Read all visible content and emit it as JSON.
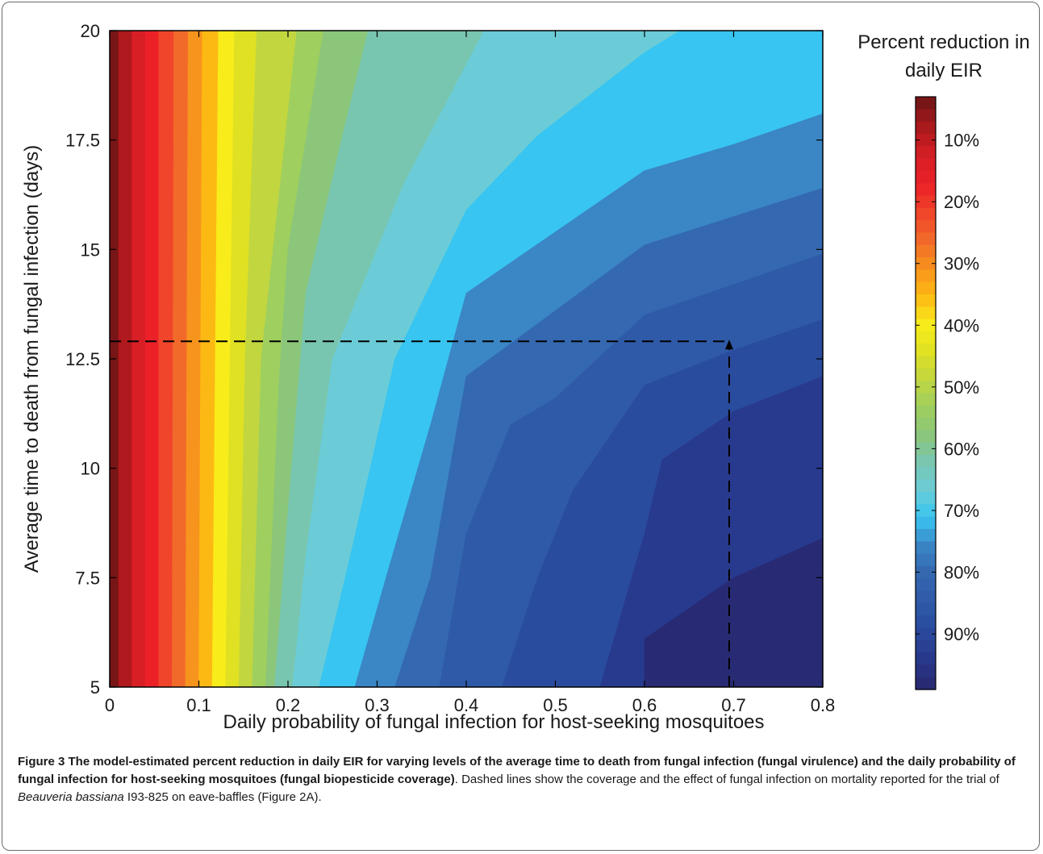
{
  "chart_data": {
    "type": "contour",
    "xlabel": "Daily probability of fungal infection for host-seeking mosquitoes",
    "ylabel": "Average time to death from fungal infection (days)",
    "xlim": [
      0,
      0.8
    ],
    "ylim": [
      5,
      20
    ],
    "x_ticks": [
      "0",
      "0.1",
      "0.2",
      "0.3",
      "0.4",
      "0.5",
      "0.6",
      "0.7",
      "0.8"
    ],
    "y_ticks": [
      "5",
      "7.5",
      "10",
      "12.5",
      "15",
      "17.5",
      "20"
    ],
    "colorbar": {
      "title_line1": "Percent reduction in",
      "title_line2": "daily EIR",
      "range": [
        3,
        99
      ],
      "ticks": [
        "10%",
        "20%",
        "30%",
        "40%",
        "50%",
        "60%",
        "70%",
        "80%",
        "90%"
      ]
    },
    "contour_levels_percent": [
      5,
      10,
      15,
      20,
      25,
      30,
      35,
      40,
      45,
      50,
      55,
      60,
      65,
      70,
      75,
      80,
      85,
      90,
      95
    ],
    "contour_boundaries": [
      {
        "level": 5,
        "points": [
          [
            0.01,
            5
          ],
          [
            0.01,
            20
          ]
        ]
      },
      {
        "level": 10,
        "points": [
          [
            0.025,
            5
          ],
          [
            0.025,
            20
          ]
        ]
      },
      {
        "level": 15,
        "points": [
          [
            0.04,
            5
          ],
          [
            0.04,
            20
          ]
        ]
      },
      {
        "level": 20,
        "points": [
          [
            0.055,
            5
          ],
          [
            0.055,
            20
          ]
        ]
      },
      {
        "level": 25,
        "points": [
          [
            0.07,
            5
          ],
          [
            0.072,
            20
          ]
        ]
      },
      {
        "level": 30,
        "points": [
          [
            0.085,
            5
          ],
          [
            0.088,
            20
          ]
        ]
      },
      {
        "level": 35,
        "points": [
          [
            0.1,
            5
          ],
          [
            0.104,
            20
          ]
        ]
      },
      {
        "level": 40,
        "points": [
          [
            0.115,
            5
          ],
          [
            0.122,
            20
          ]
        ]
      },
      {
        "level": 45,
        "points": [
          [
            0.13,
            5
          ],
          [
            0.14,
            20
          ]
        ]
      },
      {
        "level": 50,
        "points": [
          [
            0.145,
            5
          ],
          [
            0.152,
            12.5
          ],
          [
            0.165,
            20
          ]
        ]
      },
      {
        "level": 55,
        "points": [
          [
            0.16,
            5
          ],
          [
            0.17,
            12.5
          ],
          [
            0.21,
            20
          ]
        ]
      },
      {
        "level": 60,
        "points": [
          [
            0.175,
            5
          ],
          [
            0.19,
            12
          ],
          [
            0.2,
            15
          ],
          [
            0.24,
            20
          ]
        ]
      },
      {
        "level": 65,
        "points": [
          [
            0.185,
            5
          ],
          [
            0.2,
            9
          ],
          [
            0.22,
            14
          ],
          [
            0.26,
            17.5
          ],
          [
            0.29,
            20
          ]
        ]
      },
      {
        "level": 70,
        "points": [
          [
            0.205,
            5
          ],
          [
            0.22,
            8
          ],
          [
            0.25,
            12.5
          ],
          [
            0.33,
            16.5
          ],
          [
            0.42,
            20
          ]
        ]
      },
      {
        "level": 75,
        "points": [
          [
            0.235,
            5
          ],
          [
            0.27,
            8
          ],
          [
            0.32,
            12.5
          ],
          [
            0.4,
            15.9
          ],
          [
            0.48,
            17.6
          ],
          [
            0.6,
            19.5
          ],
          [
            0.64,
            20
          ]
        ]
      },
      {
        "level": 80,
        "points": [
          [
            0.275,
            5
          ],
          [
            0.31,
            7.5
          ],
          [
            0.36,
            11
          ],
          [
            0.4,
            14
          ],
          [
            0.6,
            16.8
          ],
          [
            0.7,
            17.4
          ],
          [
            0.8,
            18.1
          ]
        ]
      },
      {
        "level": 85,
        "points": [
          [
            0.32,
            5
          ],
          [
            0.36,
            7.5
          ],
          [
            0.4,
            12.1
          ],
          [
            0.6,
            15.1
          ],
          [
            0.8,
            16.4
          ]
        ]
      },
      {
        "level": 90,
        "points": [
          [
            0.37,
            5
          ],
          [
            0.4,
            8.5
          ],
          [
            0.45,
            11
          ],
          [
            0.5,
            11.6
          ],
          [
            0.6,
            13.5
          ],
          [
            0.7,
            14.2
          ],
          [
            0.8,
            14.9
          ]
        ]
      },
      {
        "level": 93,
        "points": [
          [
            0.44,
            5
          ],
          [
            0.48,
            7.5
          ],
          [
            0.52,
            9.5
          ],
          [
            0.6,
            11.9
          ],
          [
            0.7,
            12.7
          ],
          [
            0.8,
            13.4
          ]
        ]
      },
      {
        "level": 95,
        "points": [
          [
            0.55,
            5
          ],
          [
            0.6,
            8.5
          ],
          [
            0.62,
            10.2
          ],
          [
            0.7,
            11.3
          ],
          [
            0.8,
            12.1
          ]
        ]
      },
      {
        "level": 97,
        "points": [
          [
            0.6,
            5
          ],
          [
            0.6,
            6.1
          ],
          [
            0.7,
            7.5
          ],
          [
            0.8,
            8.4
          ]
        ]
      }
    ],
    "annotation": {
      "type": "dashed-lines",
      "x": 0.695,
      "y": 12.9,
      "arrow": "up"
    }
  },
  "caption": {
    "bold": "Figure 3 The model-estimated percent reduction in daily EIR for varying levels of the average time to death from fungal infection (fungal virulence) and the daily probability of fungal infection for host-seeking mosquitoes (fungal biopesticide coverage)",
    "text_before_italic": ". Dashed lines show the coverage and the effect of fungal infection on mortality reported for the trial of ",
    "italic": "Beauveria bassiana",
    "text_after_italic": " I93-825 on eave-baffles (Figure 2A)."
  },
  "colors": {
    "ramp": [
      "#781517",
      "#b0191d",
      "#d81f26",
      "#ec2127",
      "#f0452a",
      "#f26a2a",
      "#f7941d",
      "#fdb913",
      "#f8ec1b",
      "#dfe122",
      "#c2d640",
      "#9fcf5e",
      "#8bc67a",
      "#79c6b0",
      "#6bccd7",
      "#38c5f1",
      "#3b86c5",
      "#3468b0",
      "#2f5aa8",
      "#2a4c9e",
      "#283a8e",
      "#282b74"
    ]
  }
}
